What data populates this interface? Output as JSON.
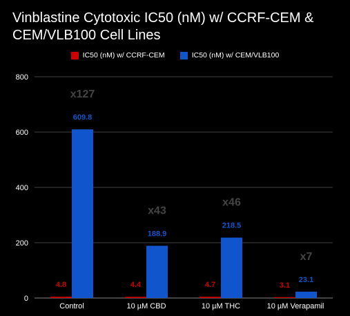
{
  "chart_data": {
    "type": "bar",
    "title": "Vinblastine Cytotoxic IC50 (nM) w/ CCRF-CEM & CEM/VLB100 Cell Lines",
    "categories": [
      "Control",
      "10 µM CBD",
      "10 µM THC",
      "10 µM Verapamil"
    ],
    "series": [
      {
        "name": "IC50 (nM) w/ CCRF-CEM",
        "values": [
          4.8,
          4.4,
          4.7,
          3.1
        ],
        "labels": [
          "4.8",
          "4.4",
          "4.7",
          "3.1"
        ],
        "color": "#cc0000"
      },
      {
        "name": "IC50 (nM) w/ CEM/VLB100",
        "values": [
          609.8,
          188.9,
          218.5,
          23.1
        ],
        "labels": [
          "609.8",
          "188.9",
          "218.5",
          "23.1"
        ],
        "color": "#1155cc"
      }
    ],
    "annotations": [
      "x127",
      "x43",
      "x46",
      "x7"
    ],
    "annotation_color": "#444444",
    "ylim": [
      0,
      800
    ],
    "yticks": [
      0,
      200,
      400,
      600,
      800
    ],
    "xlabel": "",
    "ylabel": "",
    "grid": true,
    "legend_position": "top",
    "background": "#000000",
    "text_color": "#ffffff",
    "gridline_color": "#444444"
  }
}
